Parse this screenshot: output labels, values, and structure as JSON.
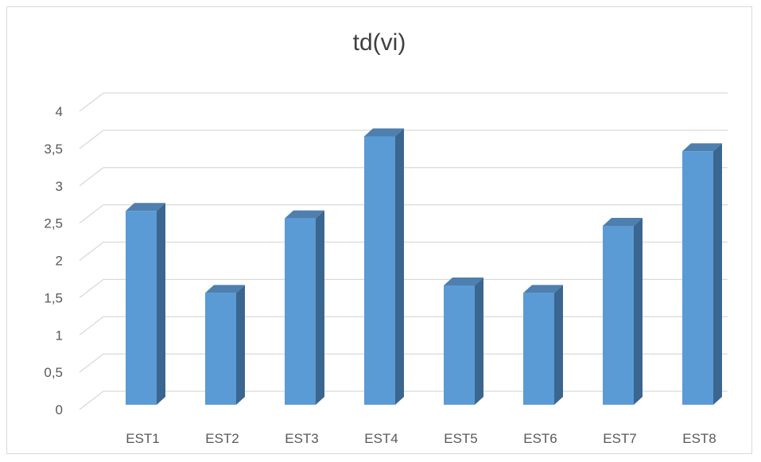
{
  "chart_data": {
    "type": "bar",
    "title": "td(vi)",
    "categories": [
      "EST1",
      "EST2",
      "EST3",
      "EST4",
      "EST5",
      "EST6",
      "EST7",
      "EST8"
    ],
    "values": [
      2.6,
      1.5,
      2.5,
      3.6,
      1.6,
      1.5,
      2.4,
      3.4
    ],
    "ylim": [
      0,
      4
    ],
    "yticks": [
      "0",
      "0,5",
      "1",
      "1,5",
      "2",
      "2,5",
      "3",
      "3,5",
      "4"
    ],
    "grid": true,
    "style": "3d-column",
    "colors": {
      "bar_front": "#5b9bd5",
      "bar_side": "#3a6690",
      "bar_top": "#4e7fae",
      "grid": "#d9d9d9"
    }
  }
}
